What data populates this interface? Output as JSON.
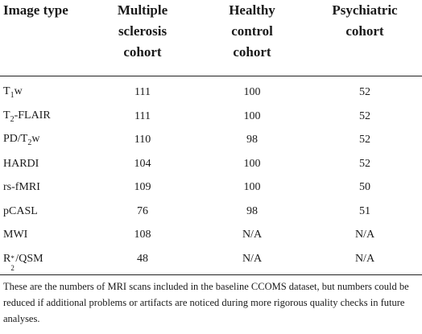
{
  "table": {
    "headers": [
      "Image type",
      "Multiple sclerosis cohort",
      "Healthy control cohort",
      "Psychiatric cohort"
    ],
    "rows": [
      {
        "type": "T1w",
        "ms": "111",
        "hc": "100",
        "psy": "52"
      },
      {
        "type": "T2-FLAIR",
        "ms": "111",
        "hc": "100",
        "psy": "52"
      },
      {
        "type": "PD/T2w",
        "ms": "110",
        "hc": "98",
        "psy": "52"
      },
      {
        "type": "HARDI",
        "ms": "104",
        "hc": "100",
        "psy": "52"
      },
      {
        "type": "rs-fMRI",
        "ms": "109",
        "hc": "100",
        "psy": "50"
      },
      {
        "type": "pCASL",
        "ms": "76",
        "hc": "98",
        "psy": "51"
      },
      {
        "type": "MWI",
        "ms": "108",
        "hc": "N/A",
        "psy": "N/A"
      },
      {
        "type": "R2*/QSM",
        "ms": "48",
        "hc": "N/A",
        "psy": "N/A"
      }
    ]
  },
  "footnote": "These are the numbers of MRI scans included in the baseline CCOMS dataset, but numbers could be reduced if additional problems or artifacts are noticed during more rigorous quality checks in future analyses."
}
